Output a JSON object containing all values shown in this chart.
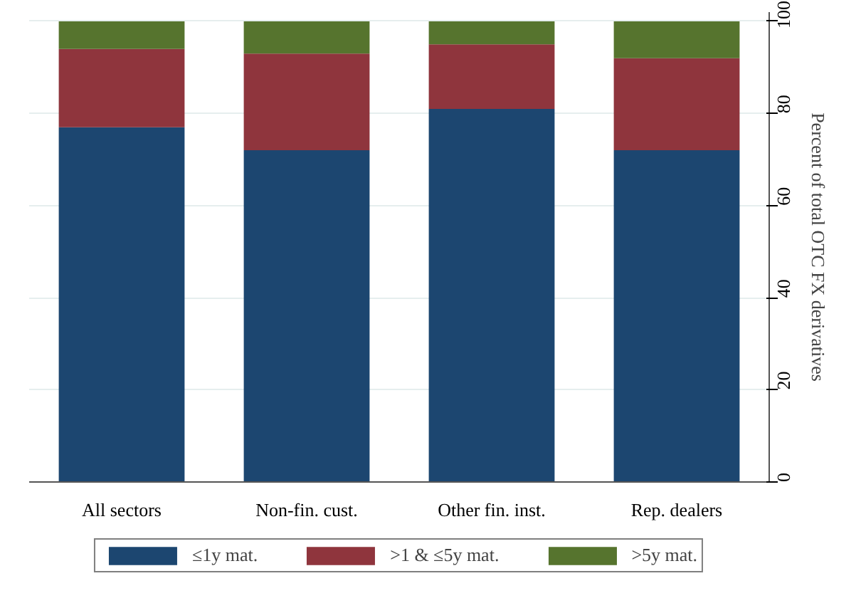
{
  "chart_data": {
    "type": "bar",
    "stacked": true,
    "ylabel": "Percent of total OTC FX derivatives",
    "categories": [
      "All sectors",
      "Non-fin. cust.",
      "Other fin. inst.",
      "Rep. dealers"
    ],
    "series": [
      {
        "name": "≤1y mat.",
        "color": "#1c4670",
        "values": [
          77,
          72,
          81,
          72
        ]
      },
      {
        "name": ">1 & ≤5y mat.",
        "color": "#8f353d",
        "values": [
          17,
          21,
          14,
          20
        ]
      },
      {
        "name": ">5y mat.",
        "color": "#56742e",
        "values": [
          6,
          7,
          5,
          8
        ]
      }
    ],
    "ylim": [
      0,
      102
    ],
    "yticks": [
      0,
      20,
      40,
      60,
      80,
      100
    ],
    "grid": "y",
    "legend": "bottom"
  }
}
